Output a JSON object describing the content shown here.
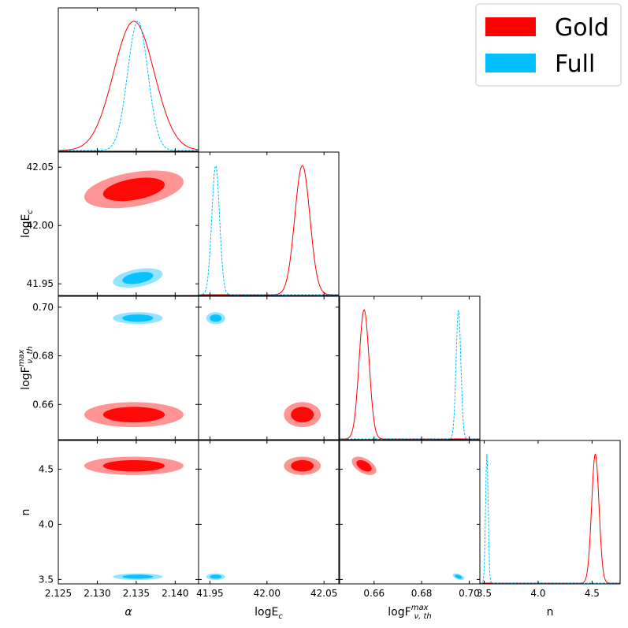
{
  "chart_data": {
    "type": "corner",
    "parameters": [
      {
        "key": "alpha",
        "label": "α",
        "ticks": [
          2.125,
          2.13,
          2.135,
          2.14
        ],
        "tick_labels": [
          "2.125",
          "2.130",
          "2.135",
          "2.140"
        ],
        "range": [
          2.125,
          2.143
        ]
      },
      {
        "key": "logEc",
        "label_main": "logE",
        "label_sub": "c",
        "ticks": [
          41.95,
          42.0,
          42.05
        ],
        "tick_labels": [
          "41.95",
          "42.00",
          "42.05"
        ],
        "range": [
          41.94,
          42.063
        ]
      },
      {
        "key": "logF",
        "label_main": "logF",
        "label_sup": "max",
        "label_sub": "ν, th",
        "ticks": [
          0.66,
          0.68,
          0.7
        ],
        "tick_labels": [
          "0.66",
          "0.68",
          "0.70"
        ],
        "range": [
          0.6455,
          0.7045
        ]
      },
      {
        "key": "n",
        "label": "n",
        "ticks": [
          3.5,
          4.0,
          4.5
        ],
        "tick_labels": [
          "3.5",
          "4.0",
          "4.5"
        ],
        "range": [
          3.46,
          4.76
        ]
      }
    ],
    "series": [
      {
        "name": "Gold",
        "color": "#ff0000",
        "line_style": "solid",
        "means": [
          2.1347,
          42.031,
          0.6558,
          4.53
        ],
        "sigmas": [
          0.0026,
          0.0066,
          0.0021,
          0.034
        ],
        "corr": [
          [
            1.0,
            0.4,
            0.0,
            0.0
          ],
          [
            0.4,
            1.0,
            0.0,
            0.0
          ],
          [
            0.0,
            0.0,
            1.0,
            -0.5
          ],
          [
            0.0,
            0.0,
            -0.5,
            1.0
          ]
        ]
      },
      {
        "name": "Full",
        "color": "#00bfff",
        "line_style": "dashed",
        "means": [
          2.1352,
          41.955,
          0.6955,
          3.525
        ],
        "sigmas": [
          0.0013,
          0.0034,
          0.001,
          0.012
        ],
        "corr": [
          [
            1.0,
            0.4,
            0.0,
            0.0
          ],
          [
            0.4,
            1.0,
            0.0,
            0.0
          ],
          [
            0.0,
            0.0,
            1.0,
            -0.5
          ],
          [
            0.0,
            0.0,
            -0.5,
            1.0
          ]
        ]
      }
    ],
    "legend": {
      "position": "top-right",
      "entries": [
        "Gold",
        "Full"
      ]
    },
    "grid": false
  }
}
